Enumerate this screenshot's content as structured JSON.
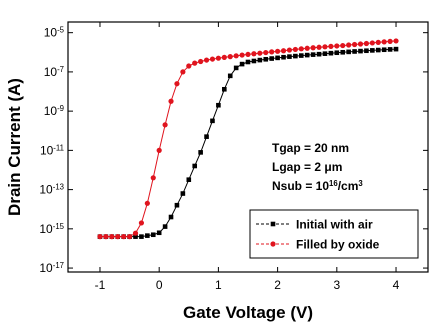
{
  "chart_data": {
    "type": "line",
    "xlabel": "Gate Voltage (V)",
    "ylabel": "Drain Current (A)",
    "log_y": true,
    "legend": "lower right",
    "annotations": [
      "Tgap = 20 nm",
      "Lgap = 2 μm",
      "Nsub = 10^16/cm^3"
    ],
    "xlim": [
      -1.54,
      4.54
    ],
    "xticks": [
      -1,
      0,
      1,
      2,
      3,
      4
    ],
    "ylim": [
      6.3e-18,
      3.5e-05
    ],
    "yticks": [
      {
        "value": 1e-05,
        "label": "10^-5"
      },
      {
        "value": 1e-07,
        "label": "10^-7"
      },
      {
        "value": 1e-09,
        "label": "10^-9"
      },
      {
        "value": 1e-11,
        "label": "10^-11"
      },
      {
        "value": 1e-13,
        "label": "10^-13"
      },
      {
        "value": 1e-15,
        "label": "10^-15"
      },
      {
        "value": 1e-17,
        "label": "10^-17"
      }
    ],
    "x": [
      -1.0,
      -0.9,
      -0.8,
      -0.7,
      -0.6,
      -0.5,
      -0.4,
      -0.3,
      -0.2,
      -0.1,
      0.0,
      0.1,
      0.2,
      0.3,
      0.4,
      0.5,
      0.6,
      0.7,
      0.8,
      0.9,
      1.0,
      1.1,
      1.2,
      1.3,
      1.4,
      1.5,
      1.6,
      1.7,
      1.8,
      1.9,
      2.0,
      2.1,
      2.2,
      2.3,
      2.4,
      2.5,
      2.6,
      2.7,
      2.8,
      2.9,
      3.0,
      3.1,
      3.2,
      3.3,
      3.4,
      3.5,
      3.6,
      3.7,
      3.8,
      3.9,
      4.0
    ],
    "series": [
      {
        "name": "Initial with air",
        "color": "#000000",
        "marker": "square",
        "values": [
          4e-16,
          4e-16,
          4e-16,
          4e-16,
          4e-16,
          4e-16,
          4e-16,
          4e-16,
          4.5e-16,
          5e-16,
          6.3e-16,
          1.3e-15,
          4e-15,
          1.6e-14,
          6.3e-14,
          3.2e-13,
          1.6e-12,
          7.9e-12,
          5e-11,
          3.2e-10,
          2e-09,
          1.3e-08,
          6.3e-08,
          1.6e-07,
          2.5e-07,
          3.2e-07,
          3.6e-07,
          4e-07,
          4.4e-07,
          4.8e-07,
          5.2e-07,
          5.6e-07,
          6e-07,
          6.4e-07,
          6.8e-07,
          7.2e-07,
          7.6e-07,
          8e-07,
          8.5e-07,
          9e-07,
          9.5e-07,
          1e-06,
          1.05e-06,
          1.1e-06,
          1.15e-06,
          1.2e-06,
          1.25e-06,
          1.3e-06,
          1.35e-06,
          1.4e-06,
          1.45e-06
        ]
      },
      {
        "name": "Filled by oxide",
        "color": "#e0141e",
        "marker": "circle",
        "values": [
          4e-16,
          4e-16,
          4e-16,
          4e-16,
          4e-16,
          4e-16,
          6e-16,
          2e-15,
          2e-14,
          4e-13,
          1e-11,
          2e-10,
          3.2e-09,
          2.5e-08,
          1e-07,
          2e-07,
          2.8e-07,
          3.4e-07,
          4e-07,
          4.5e-07,
          5e-07,
          5.5e-07,
          6e-07,
          6.6e-07,
          7.2e-07,
          7.8e-07,
          8.4e-07,
          9e-07,
          9.7e-07,
          1.05e-06,
          1.12e-06,
          1.2e-06,
          1.3e-06,
          1.4e-06,
          1.5e-06,
          1.6e-06,
          1.7e-06,
          1.8e-06,
          1.9e-06,
          2e-06,
          2.1e-06,
          2.2e-06,
          2.35e-06,
          2.5e-06,
          2.65e-06,
          2.8e-06,
          3e-06,
          3.2e-06,
          3.4e-06,
          3.6e-06,
          3.8e-06
        ]
      }
    ]
  }
}
